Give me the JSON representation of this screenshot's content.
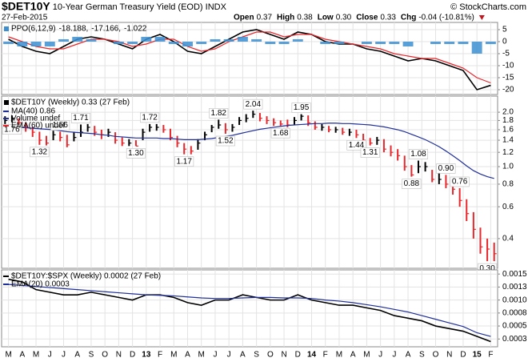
{
  "header": {
    "symbol": "$DET10Y",
    "name": "10-Year German Treasury Yield (EOD) INDX",
    "date": "27-Feb-2015",
    "copyright": "© StockCharts.com",
    "quote": [
      {
        "label": "Open",
        "value": "0.37"
      },
      {
        "label": "High",
        "value": "0.38"
      },
      {
        "label": "Low",
        "value": "0.30"
      },
      {
        "label": "Close",
        "value": "0.33"
      },
      {
        "label": "Chg",
        "value": "-0.04 (-10.81%)"
      }
    ]
  },
  "chart_data": [
    {
      "type": "line",
      "title": "PPO(6,12,9)",
      "ylim": [
        -22,
        8
      ],
      "yticks": [
        5,
        0,
        -5,
        -10,
        -15,
        -20
      ],
      "grid": true,
      "series": [
        {
          "name": "-18.188,",
          "color": "#000000",
          "style": "line",
          "values": [
            1,
            -2,
            -4,
            -5,
            -2,
            1,
            2,
            1,
            -1,
            -3,
            1,
            3,
            0,
            -4,
            -5,
            -2,
            1,
            4,
            5,
            3,
            1,
            4,
            3,
            0,
            -1,
            -1,
            -3,
            -4,
            -6,
            -8,
            -7,
            -8,
            -10,
            -12,
            -20,
            -18.188
          ]
        },
        {
          "name": "-17.166,",
          "color": "#e8262b",
          "style": "line",
          "values": [
            2,
            0,
            -2,
            -3,
            -3,
            -1,
            1,
            1,
            0,
            -2,
            -1,
            1,
            1,
            -2,
            -4,
            -3,
            0,
            2,
            4,
            4,
            2,
            3,
            3,
            1,
            0,
            -1,
            -2,
            -3,
            -5,
            -6,
            -7,
            -7,
            -9,
            -11,
            -15,
            -17.166
          ]
        },
        {
          "name": "-1.022",
          "color": "#3b8fd0",
          "style": "bar",
          "values": [
            -1,
            -2,
            -2,
            -2,
            1,
            2,
            1,
            0,
            -1,
            -1,
            2,
            2,
            -1,
            -2,
            -1,
            1,
            1,
            2,
            1,
            -1,
            -1,
            1,
            0,
            -1,
            -1,
            0,
            -1,
            -1,
            -1,
            -2,
            0,
            -1,
            -1,
            -1,
            -5,
            -1.022
          ]
        }
      ]
    },
    {
      "type": "ohlc",
      "title": "$DET10Y (Weekly) 0.33 (27 Feb)",
      "log": true,
      "ylim": [
        0.274,
        2.455
      ],
      "grid": true,
      "yticks": [
        {
          "value": 2,
          "label": "2.0"
        },
        1.8,
        1.6,
        1.4,
        1.2,
        {
          "value": 1,
          "label": "1.0"
        },
        0.8,
        0.6,
        0.4
      ],
      "up_color": "#000000",
      "down_color": "#e8262b",
      "high": [
        1.9,
        1.92,
        1.85,
        1.76,
        1.66,
        1.56,
        1.48,
        1.58,
        1.56,
        1.5,
        1.56,
        1.71,
        1.72,
        1.68,
        1.6,
        1.62,
        1.55,
        1.45,
        1.42,
        1.4,
        1.62,
        1.72,
        1.72,
        1.7,
        1.62,
        1.48,
        1.35,
        1.3,
        1.42,
        1.56,
        1.7,
        1.82,
        1.74,
        1.72,
        1.88,
        1.95,
        2.04,
        1.98,
        1.9,
        1.85,
        1.8,
        1.82,
        1.88,
        1.95,
        1.92,
        1.78,
        1.72,
        1.68,
        1.66,
        1.64,
        1.62,
        1.6,
        1.52,
        1.44,
        1.46,
        1.42,
        1.31,
        1.25,
        1.15,
        1.02,
        1.08,
        1.06,
        0.96,
        0.92,
        0.9,
        0.84,
        0.76,
        0.66,
        0.56,
        0.46,
        0.4,
        0.38
      ],
      "low": [
        1.72,
        1.76,
        1.66,
        1.56,
        1.46,
        1.32,
        1.31,
        1.4,
        1.38,
        1.28,
        1.38,
        1.46,
        1.56,
        1.48,
        1.42,
        1.46,
        1.34,
        1.3,
        1.3,
        1.3,
        1.4,
        1.56,
        1.58,
        1.54,
        1.4,
        1.28,
        1.17,
        1.17,
        1.24,
        1.4,
        1.55,
        1.62,
        1.52,
        1.56,
        1.7,
        1.76,
        1.86,
        1.78,
        1.72,
        1.68,
        1.68,
        1.65,
        1.7,
        1.8,
        1.68,
        1.6,
        1.58,
        1.55,
        1.54,
        1.5,
        1.48,
        1.44,
        1.36,
        1.31,
        1.32,
        1.2,
        1.14,
        1.08,
        0.95,
        0.88,
        0.92,
        0.94,
        0.82,
        0.8,
        0.76,
        0.7,
        0.6,
        0.5,
        0.4,
        0.33,
        0.3,
        0.3
      ],
      "close": [
        1.8,
        1.85,
        1.75,
        1.65,
        1.55,
        1.4,
        1.35,
        1.5,
        1.45,
        1.32,
        1.45,
        1.55,
        1.65,
        1.55,
        1.5,
        1.55,
        1.4,
        1.35,
        1.35,
        1.3,
        1.55,
        1.65,
        1.65,
        1.6,
        1.45,
        1.35,
        1.25,
        1.22,
        1.35,
        1.5,
        1.65,
        1.7,
        1.6,
        1.65,
        1.8,
        1.85,
        1.95,
        1.85,
        1.8,
        1.75,
        1.72,
        1.7,
        1.8,
        1.9,
        1.75,
        1.65,
        1.65,
        1.6,
        1.6,
        1.55,
        1.55,
        1.5,
        1.4,
        1.35,
        1.4,
        1.25,
        1.2,
        1.15,
        1.0,
        0.9,
        1.0,
        1.0,
        0.85,
        0.85,
        0.8,
        0.75,
        0.65,
        0.55,
        0.45,
        0.36,
        0.35,
        0.33
      ],
      "series": [
        {
          "name": "MA(40) 0.86",
          "color": "#1f2f9a",
          "values": [
            1.66,
            1.66,
            1.65,
            1.64,
            1.63,
            1.62,
            1.61,
            1.6,
            1.58,
            1.56,
            1.55,
            1.54,
            1.53,
            1.52,
            1.5,
            1.49,
            1.47,
            1.46,
            1.45,
            1.44,
            1.44,
            1.44,
            1.44,
            1.43,
            1.43,
            1.42,
            1.41,
            1.41,
            1.41,
            1.42,
            1.43,
            1.45,
            1.47,
            1.49,
            1.52,
            1.55,
            1.58,
            1.61,
            1.63,
            1.65,
            1.67,
            1.69,
            1.7,
            1.71,
            1.72,
            1.73,
            1.73,
            1.74,
            1.74,
            1.73,
            1.73,
            1.72,
            1.71,
            1.7,
            1.68,
            1.66,
            1.63,
            1.6,
            1.56,
            1.51,
            1.46,
            1.41,
            1.35,
            1.29,
            1.22,
            1.15,
            1.08,
            1.01,
            0.95,
            0.91,
            0.88,
            0.86
          ]
        }
      ],
      "legend_extra": [
        {
          "name": "Volume undef",
          "color": "#1f2f9a"
        },
        {
          "name": "EMA(60) undef",
          "color": "#e8262b"
        }
      ],
      "annotations": [
        {
          "label": "1.76",
          "value": 1.76,
          "index": 1
        },
        {
          "label": "1.56",
          "value": 1.56,
          "index": 8
        },
        {
          "label": "1.71",
          "value": 1.71,
          "index": 11
        },
        {
          "label": "1.32",
          "value": 1.32,
          "index": 5
        },
        {
          "label": "1.30",
          "value": 1.3,
          "index": 19
        },
        {
          "label": "1.72",
          "value": 1.72,
          "index": 21
        },
        {
          "label": "1.17",
          "value": 1.17,
          "index": 26
        },
        {
          "label": "1.82",
          "value": 1.82,
          "index": 31
        },
        {
          "label": "1.52",
          "value": 1.52,
          "index": 32
        },
        {
          "label": "2.04",
          "value": 2.04,
          "index": 36
        },
        {
          "label": "1.68",
          "value": 1.68,
          "index": 40
        },
        {
          "label": "1.95",
          "value": 1.95,
          "index": 43
        },
        {
          "label": "1.44",
          "value": 1.44,
          "index": 51
        },
        {
          "label": "1.31",
          "value": 1.31,
          "index": 53
        },
        {
          "label": "1.08",
          "value": 1.08,
          "index": 60
        },
        {
          "label": "0.90",
          "value": 0.9,
          "index": 64
        },
        {
          "label": "0.88",
          "value": 0.88,
          "index": 59
        },
        {
          "label": "0.76",
          "value": 0.76,
          "index": 66
        },
        {
          "label": "0.30",
          "value": 0.3,
          "index": 70
        }
      ]
    },
    {
      "type": "line",
      "ylim": [
        0.0001,
        0.00158
      ],
      "grid": true,
      "yticks": [
        0.0015,
        {
          "value": 0.00125,
          "label": "0.0013"
        },
        {
          "value": 0.001,
          "label": "0.0010"
        },
        {
          "value": 0.00075,
          "label": "0.0008"
        },
        0.0005,
        {
          "value": 0.00025,
          "label": "0.0003"
        }
      ],
      "categories": [
        "M",
        "A",
        "M",
        "J",
        "J",
        "A",
        "S",
        "O",
        "N",
        "D",
        "13",
        "F",
        "M",
        "A",
        "M",
        "J",
        "J",
        "A",
        "S",
        "O",
        "N",
        "D",
        "14",
        "F",
        "M",
        "A",
        "M",
        "J",
        "J",
        "A",
        "S",
        "O",
        "N",
        "D",
        "15",
        "F"
      ],
      "series": [
        {
          "name": "$DET10Y:$SPX (Weekly) 0.0002 (27 Feb)",
          "color": "#000000",
          "style": "line",
          "values": [
            0.0014,
            0.00135,
            0.0012,
            0.00115,
            0.0011,
            0.0011,
            0.00115,
            0.0011,
            0.00105,
            0.001,
            0.0011,
            0.0011,
            0.00105,
            0.00095,
            0.0009,
            0.001,
            0.001,
            0.0011,
            0.00105,
            0.001,
            0.001,
            0.0011,
            0.001,
            0.00095,
            0.0009,
            0.0009,
            0.00085,
            0.0008,
            0.0007,
            0.00065,
            0.0006,
            0.0005,
            0.00045,
            0.0004,
            0.0003,
            0.0002
          ]
        },
        {
          "name": "EMA(20) 0.0003",
          "color": "#1f2f9a",
          "style": "line",
          "values": [
            0.0013,
            0.00128,
            0.00126,
            0.00124,
            0.00122,
            0.0012,
            0.00118,
            0.00116,
            0.00114,
            0.00112,
            0.0011,
            0.00109,
            0.00108,
            0.00106,
            0.00104,
            0.00103,
            0.00103,
            0.00104,
            0.00105,
            0.00105,
            0.00104,
            0.00104,
            0.00103,
            0.001,
            0.00098,
            0.00095,
            0.00091,
            0.00087,
            0.00082,
            0.00077,
            0.0007,
            0.00063,
            0.00056,
            0.00049,
            0.00037,
            0.0003
          ]
        }
      ]
    }
  ]
}
